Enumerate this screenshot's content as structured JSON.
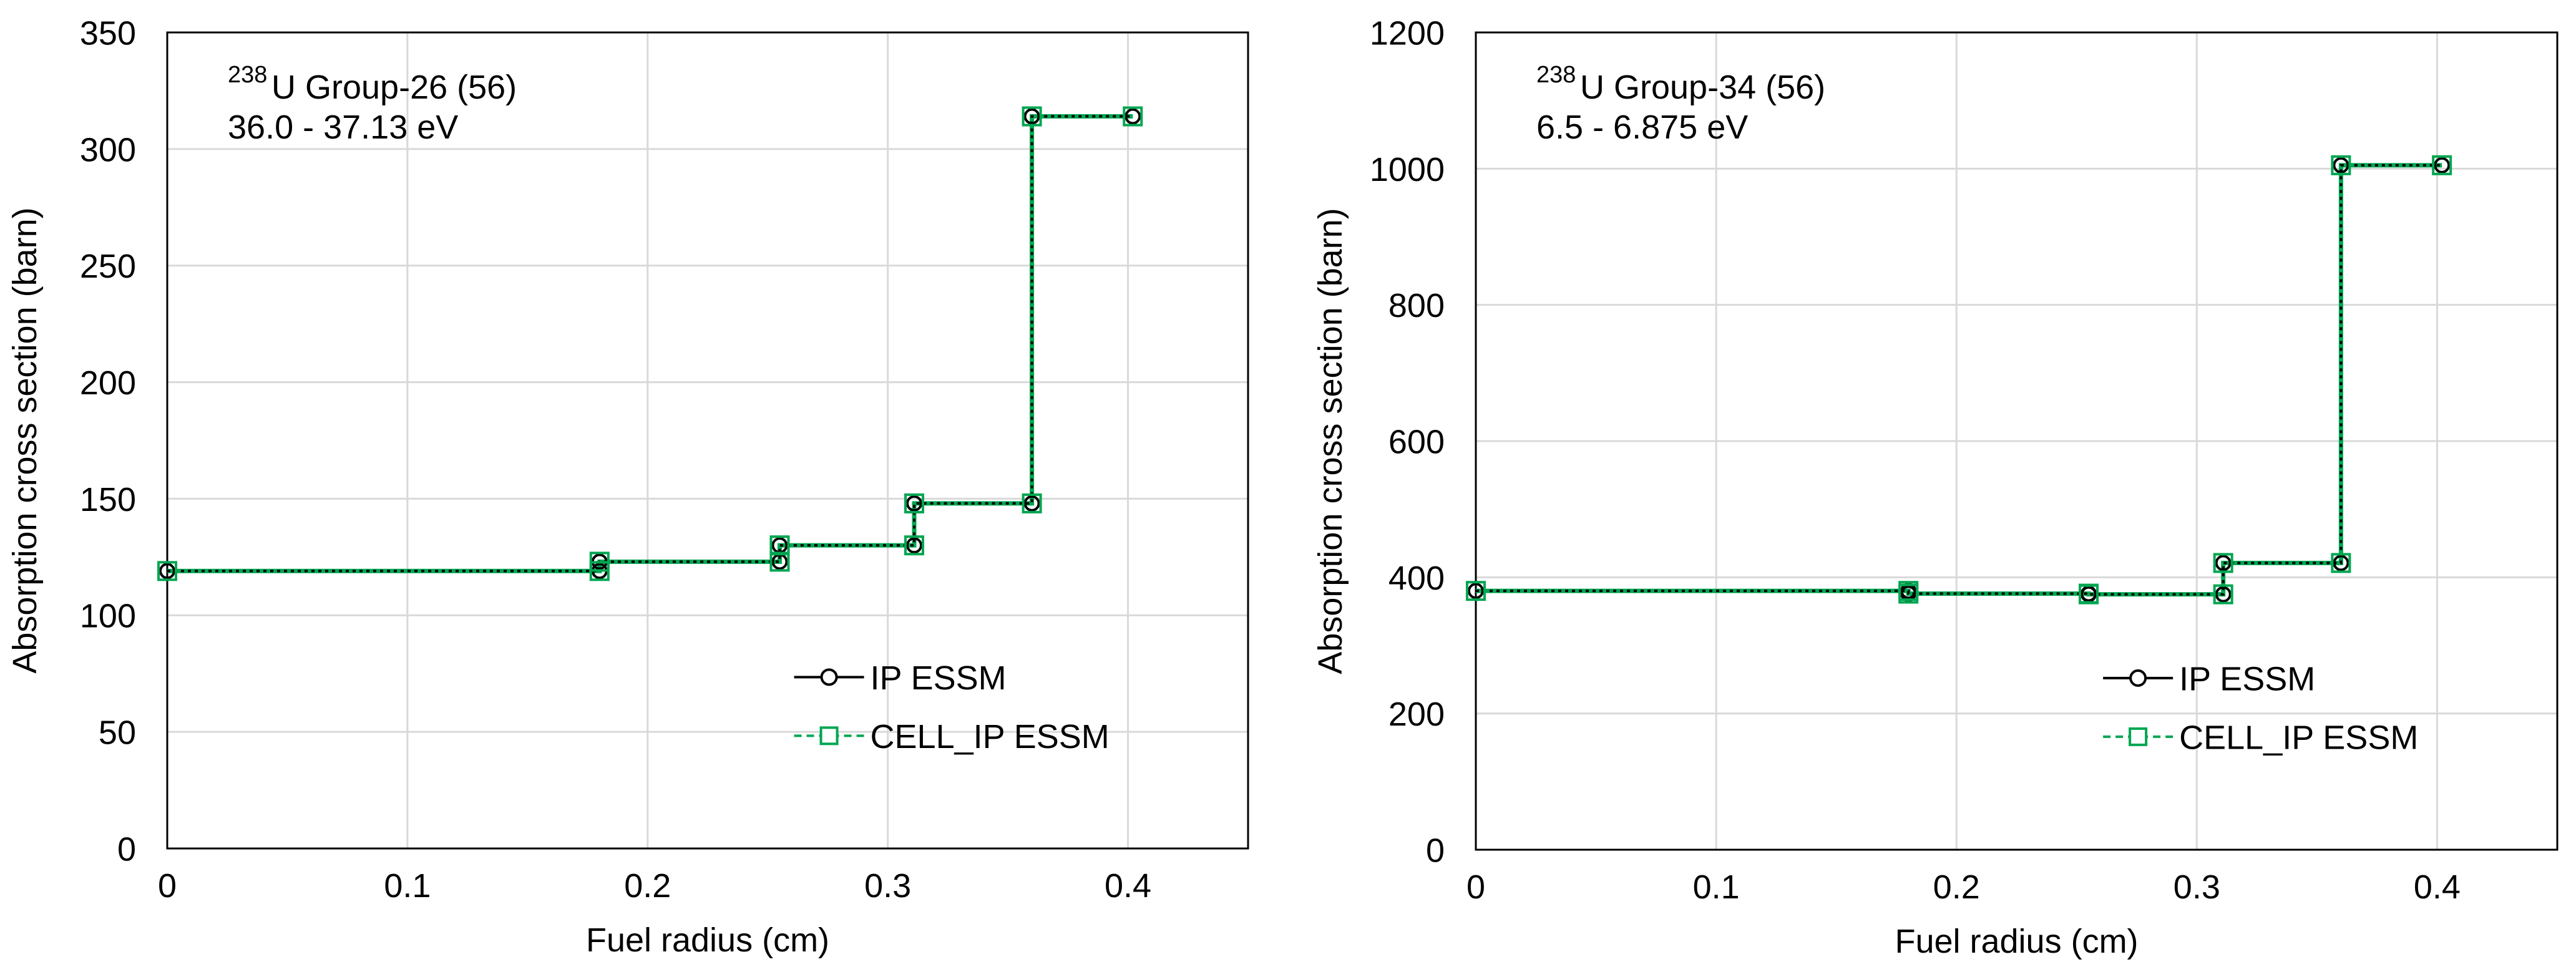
{
  "chart_data": [
    {
      "type": "line",
      "title_prefix": "238",
      "title_main": "U Group-26  (56)",
      "subtitle": "36.0 - 37.13 eV",
      "xlabel": "Fuel radius (cm)",
      "ylabel": "Absorption cross section (barn)",
      "xlim": [
        0,
        0.45
      ],
      "ylim": [
        0,
        350
      ],
      "xticks": [
        0,
        0.1,
        0.2,
        0.3,
        0.4
      ],
      "xtick_labels": [
        "0",
        "0.1",
        "0.2",
        "0.3",
        "0.4"
      ],
      "yticks": [
        0,
        50,
        100,
        150,
        200,
        250,
        300,
        350
      ],
      "ytick_labels": [
        "0",
        "50",
        "100",
        "150",
        "200",
        "250",
        "300",
        "350"
      ],
      "grid": true,
      "legend_position": "bottom-right",
      "series": [
        {
          "name": "IP ESSM",
          "color": "#000000",
          "marker": "circle",
          "linestyle": "solid",
          "x": [
            0,
            0.18,
            0.18,
            0.255,
            0.255,
            0.311,
            0.311,
            0.36,
            0.36,
            0.402
          ],
          "y": [
            119,
            119,
            123,
            123,
            130,
            130,
            148,
            148,
            314,
            314
          ]
        },
        {
          "name": "CELL_IP ESSM",
          "color": "#00a651",
          "marker": "square",
          "linestyle": "dashed",
          "x": [
            0,
            0.18,
            0.18,
            0.255,
            0.255,
            0.311,
            0.311,
            0.36,
            0.36,
            0.402
          ],
          "y": [
            119,
            119,
            123,
            123,
            130,
            130,
            148,
            148,
            314,
            314
          ]
        }
      ]
    },
    {
      "type": "line",
      "title_prefix": "238",
      "title_main": "U Group-34  (56)",
      "subtitle": "6.5 - 6.875 eV",
      "xlabel": "Fuel radius (cm)",
      "ylabel": "Absorption cross section (barn)",
      "xlim": [
        0,
        0.45
      ],
      "ylim": [
        0,
        1200
      ],
      "xticks": [
        0,
        0.1,
        0.2,
        0.3,
        0.4
      ],
      "xtick_labels": [
        "0",
        "0.1",
        "0.2",
        "0.3",
        "0.4"
      ],
      "yticks": [
        0,
        200,
        400,
        600,
        800,
        1000,
        1200
      ],
      "ytick_labels": [
        "0",
        "200",
        "400",
        "600",
        "800",
        "1000",
        "1200"
      ],
      "grid": true,
      "legend_position": "bottom-right",
      "series": [
        {
          "name": "IP ESSM",
          "color": "#000000",
          "marker": "circle",
          "linestyle": "solid",
          "x": [
            0,
            0.18,
            0.18,
            0.255,
            0.255,
            0.311,
            0.311,
            0.36,
            0.36,
            0.402
          ],
          "y": [
            380,
            380,
            376,
            376,
            375,
            375,
            421,
            421,
            1005,
            1005
          ]
        },
        {
          "name": "CELL_IP ESSM",
          "color": "#00a651",
          "marker": "square",
          "linestyle": "dashed",
          "x": [
            0,
            0.18,
            0.18,
            0.255,
            0.255,
            0.311,
            0.311,
            0.36,
            0.36,
            0.402
          ],
          "y": [
            380,
            380,
            376,
            376,
            375,
            375,
            421,
            421,
            1005,
            1005
          ]
        }
      ]
    }
  ]
}
